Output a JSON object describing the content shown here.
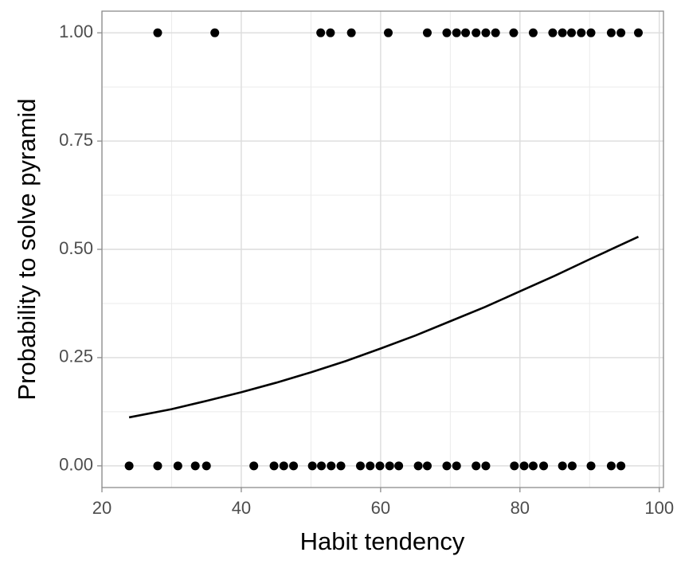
{
  "chart_data": {
    "type": "scatter",
    "x_label": "Habit tendency",
    "y_label": "Probability to solve pyramid",
    "xlim": [
      20,
      100.6
    ],
    "ylim": [
      -0.05,
      1.05
    ],
    "xticks": [
      20,
      40,
      60,
      80,
      100
    ],
    "yticks": [
      {
        "value": 0,
        "label": "0.00"
      },
      {
        "value": 0.25,
        "label": "0.25"
      },
      {
        "value": 0.5,
        "label": "0.50"
      },
      {
        "value": 0.75,
        "label": "0.75"
      },
      {
        "value": 1,
        "label": "1.00"
      }
    ],
    "xminorticks": [
      30,
      50,
      70,
      90
    ],
    "yminorticks": [
      0.125,
      0.375,
      0.625,
      0.875
    ],
    "grid": true,
    "layers": [
      {
        "type": "point",
        "color": "#000000",
        "x": [
          28.0,
          36.2,
          51.4,
          52.8,
          55.8,
          61.1,
          66.7,
          69.5,
          70.9,
          72.2,
          73.7,
          75.1,
          76.5,
          79.1,
          81.9,
          84.7,
          86.1,
          87.4,
          88.8,
          90.2,
          93.1,
          94.5,
          97.0,
          23.9,
          28.0,
          30.9,
          33.4,
          35.0,
          41.8,
          44.7,
          46.1,
          47.5,
          50.2,
          51.5,
          52.9,
          54.3,
          57.1,
          58.5,
          59.9,
          61.3,
          62.6,
          65.4,
          66.7,
          69.5,
          70.9,
          73.7,
          75.1,
          79.2,
          80.6,
          81.9,
          83.4,
          86.1,
          87.5,
          90.2,
          93.1,
          94.5
        ],
        "values": [
          1,
          1,
          1,
          1,
          1,
          1,
          1,
          1,
          1,
          1,
          1,
          1,
          1,
          1,
          1,
          1,
          1,
          1,
          1,
          1,
          1,
          1,
          1,
          0,
          0,
          0,
          0,
          0,
          0,
          0,
          0,
          0,
          0,
          0,
          0,
          0,
          0,
          0,
          0,
          0,
          0,
          0,
          0,
          0,
          0,
          0,
          0,
          0,
          0,
          0,
          0,
          0,
          0,
          0,
          0,
          0
        ]
      },
      {
        "type": "line",
        "color": "#000000",
        "x": [
          23.9,
          30,
          35,
          40,
          45,
          50,
          55,
          60,
          65,
          70,
          75,
          80,
          85,
          90,
          97
        ],
        "values": [
          0.112,
          0.131,
          0.15,
          0.17,
          0.192,
          0.216,
          0.242,
          0.271,
          0.301,
          0.334,
          0.367,
          0.403,
          0.439,
          0.477,
          0.529
        ]
      }
    ]
  }
}
